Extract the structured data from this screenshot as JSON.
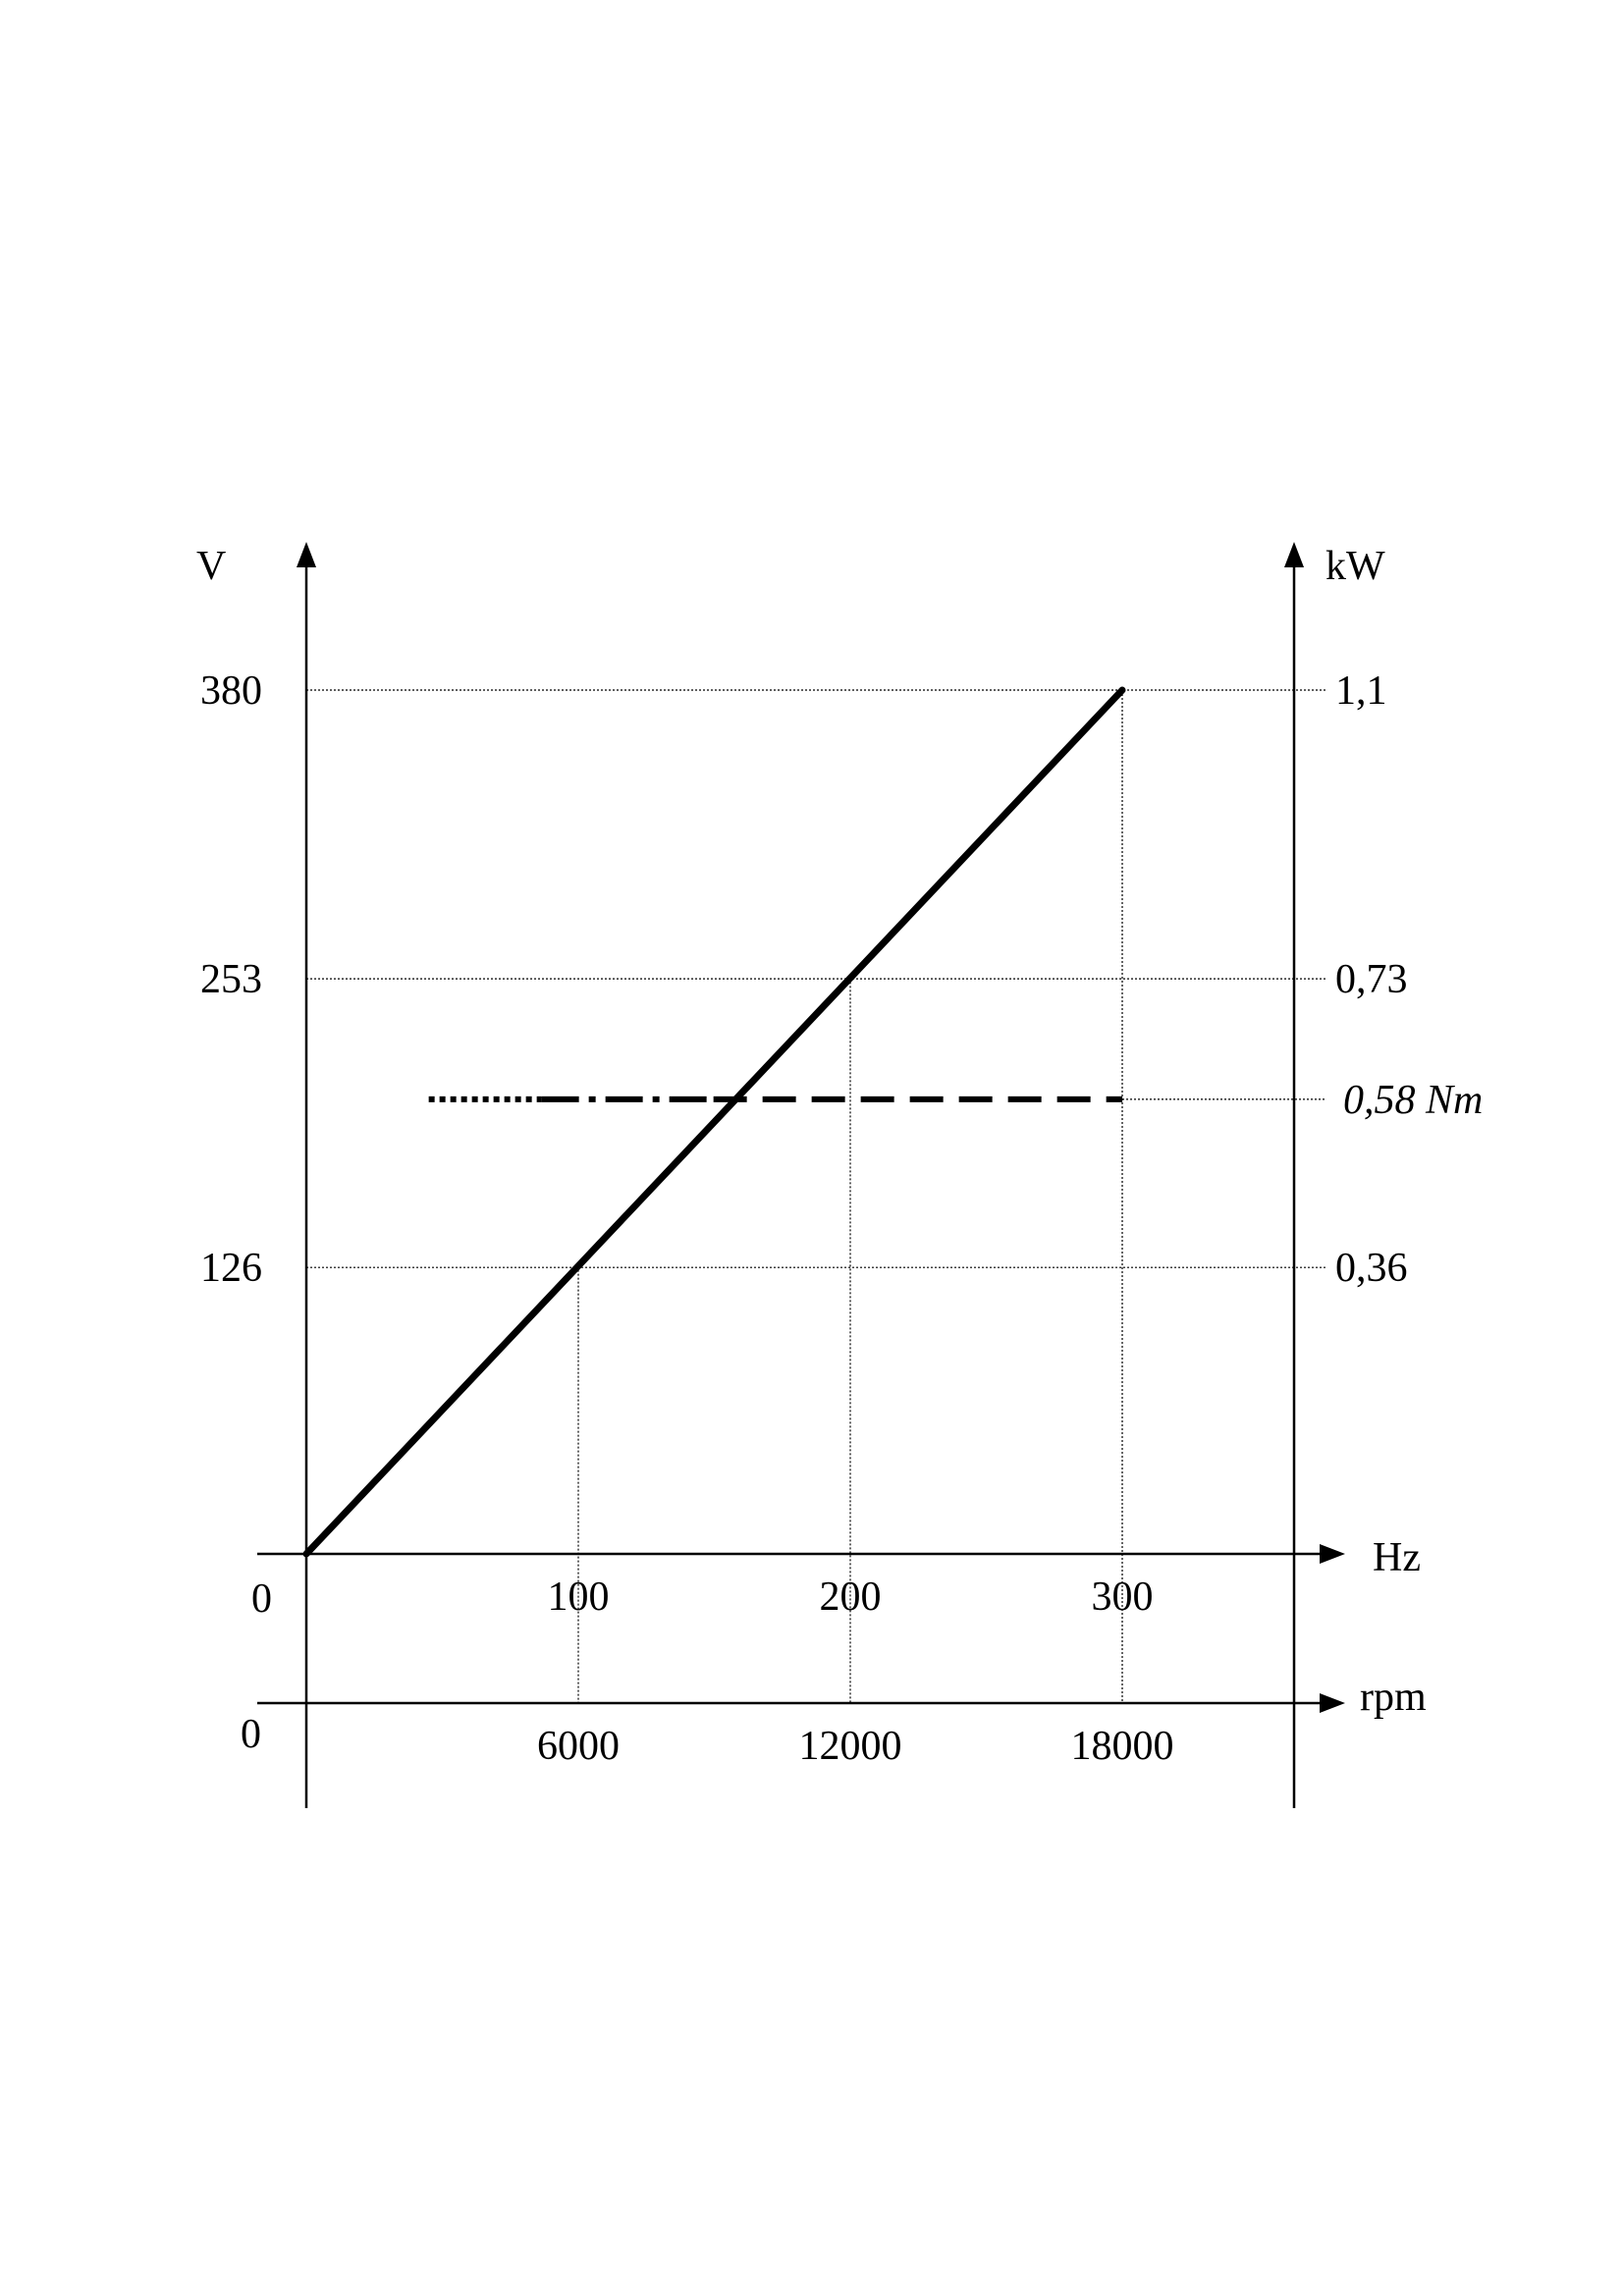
{
  "chart_data": {
    "type": "line",
    "y_left_label": "V",
    "y_right_label": "kW",
    "x_label": "Hz",
    "x2_label": "rpm",
    "x_origin_label": "0",
    "x2_origin_label": "0",
    "y_ticks": [
      {
        "value": 126,
        "label": "126"
      },
      {
        "value": 253,
        "label": "253"
      },
      {
        "value": 380,
        "label": "380"
      }
    ],
    "y_right_ticks": [
      {
        "value": 126,
        "label": "0,36"
      },
      {
        "value": 253,
        "label": "0,73"
      },
      {
        "value": 380,
        "label": "1,1"
      }
    ],
    "x_ticks": [
      {
        "value": 100,
        "label": "100"
      },
      {
        "value": 200,
        "label": "200"
      },
      {
        "value": 300,
        "label": "300"
      }
    ],
    "x2_ticks": [
      {
        "value": 100,
        "label": "6000"
      },
      {
        "value": 200,
        "label": "12000"
      },
      {
        "value": 300,
        "label": "18000"
      }
    ],
    "xlim": [
      0,
      365
    ],
    "ylim": [
      0,
      380
    ],
    "series": [
      {
        "values": [
          [
            0,
            0
          ],
          [
            300,
            380
          ]
        ],
        "style": "solid"
      }
    ],
    "torque_line": {
      "label": "0,58 Nm",
      "y": 200,
      "x_start": 45,
      "x_end": 300
    },
    "grid": "dotted reference lines at tick values"
  }
}
